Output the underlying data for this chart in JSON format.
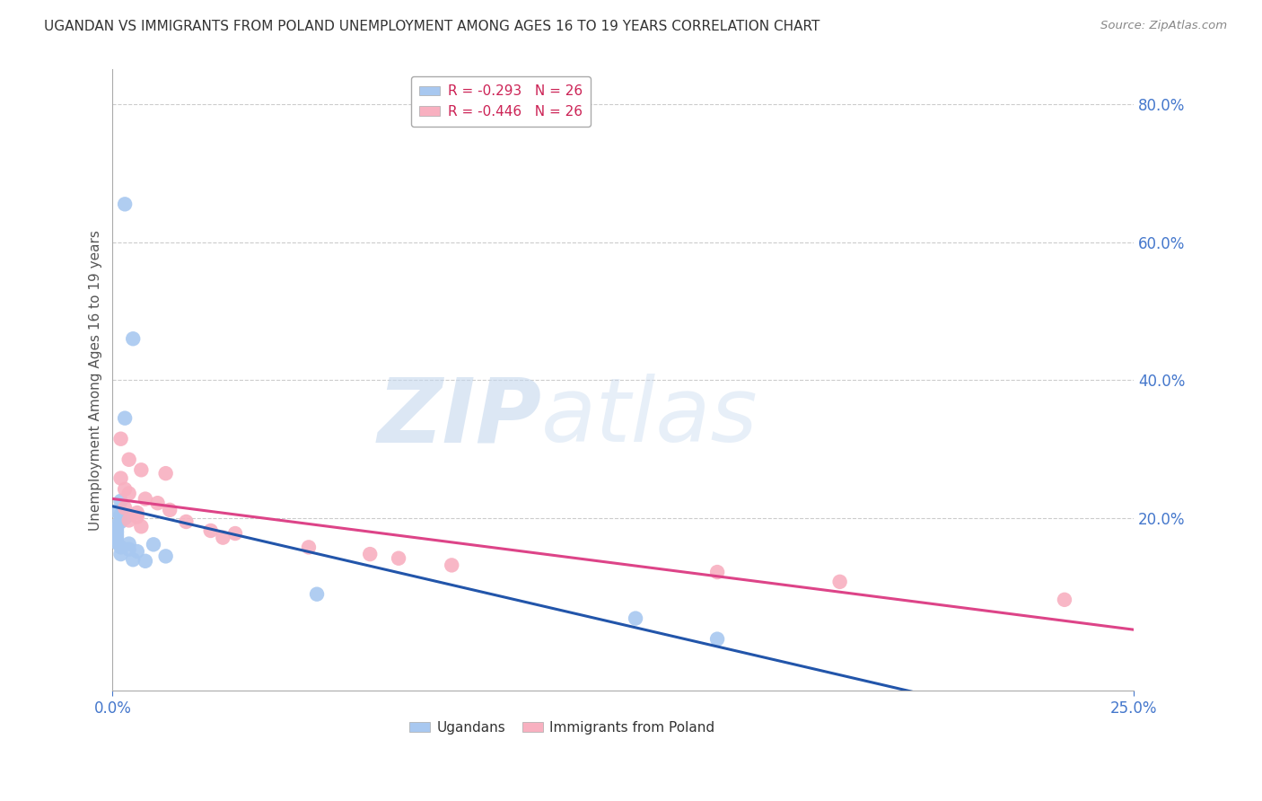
{
  "title": "UGANDAN VS IMMIGRANTS FROM POLAND UNEMPLOYMENT AMONG AGES 16 TO 19 YEARS CORRELATION CHART",
  "source": "Source: ZipAtlas.com",
  "ylabel": "Unemployment Among Ages 16 to 19 years",
  "xlim": [
    0.0,
    0.25
  ],
  "ylim": [
    -0.05,
    0.85
  ],
  "right_yticks": [
    0.8,
    0.6,
    0.4,
    0.2
  ],
  "right_yticklabels": [
    "80.0%",
    "60.0%",
    "40.0%",
    "20.0%"
  ],
  "ugandan_scatter": [
    [
      0.003,
      0.655
    ],
    [
      0.005,
      0.46
    ],
    [
      0.003,
      0.345
    ],
    [
      0.002,
      0.225
    ],
    [
      0.001,
      0.21
    ],
    [
      0.002,
      0.205
    ],
    [
      0.003,
      0.2
    ],
    [
      0.002,
      0.195
    ],
    [
      0.001,
      0.19
    ],
    [
      0.001,
      0.185
    ],
    [
      0.001,
      0.18
    ],
    [
      0.001,
      0.175
    ],
    [
      0.001,
      0.17
    ],
    [
      0.001,
      0.165
    ],
    [
      0.004,
      0.163
    ],
    [
      0.01,
      0.162
    ],
    [
      0.002,
      0.158
    ],
    [
      0.004,
      0.155
    ],
    [
      0.006,
      0.152
    ],
    [
      0.002,
      0.148
    ],
    [
      0.013,
      0.145
    ],
    [
      0.005,
      0.14
    ],
    [
      0.008,
      0.138
    ],
    [
      0.05,
      0.09
    ],
    [
      0.128,
      0.055
    ],
    [
      0.148,
      0.025
    ]
  ],
  "poland_scatter": [
    [
      0.002,
      0.315
    ],
    [
      0.004,
      0.285
    ],
    [
      0.007,
      0.27
    ],
    [
      0.013,
      0.265
    ],
    [
      0.002,
      0.258
    ],
    [
      0.003,
      0.242
    ],
    [
      0.004,
      0.236
    ],
    [
      0.008,
      0.228
    ],
    [
      0.011,
      0.222
    ],
    [
      0.003,
      0.215
    ],
    [
      0.014,
      0.212
    ],
    [
      0.006,
      0.208
    ],
    [
      0.006,
      0.202
    ],
    [
      0.004,
      0.197
    ],
    [
      0.018,
      0.195
    ],
    [
      0.007,
      0.188
    ],
    [
      0.024,
      0.182
    ],
    [
      0.03,
      0.178
    ],
    [
      0.027,
      0.172
    ],
    [
      0.048,
      0.158
    ],
    [
      0.063,
      0.148
    ],
    [
      0.07,
      0.142
    ],
    [
      0.083,
      0.132
    ],
    [
      0.148,
      0.122
    ],
    [
      0.178,
      0.108
    ],
    [
      0.233,
      0.082
    ]
  ],
  "ugandan_color": "#a8c8f0",
  "poland_color": "#f8b0c0",
  "ugandan_line_color": "#2255aa",
  "poland_line_color": "#dd4488",
  "ugandan_R": "-0.293",
  "ugandan_N": "26",
  "poland_R": "-0.446",
  "poland_N": "26",
  "background_color": "#ffffff",
  "grid_color": "#cccccc",
  "watermark_zip": "ZIP",
  "watermark_atlas": "atlas",
  "watermark_color_zip": "#c5d8ee",
  "watermark_color_atlas": "#c5d8ee",
  "title_color": "#333333",
  "axis_label_color": "#555555",
  "tick_color": "#4477cc",
  "legend_text_color": "#cc2255"
}
